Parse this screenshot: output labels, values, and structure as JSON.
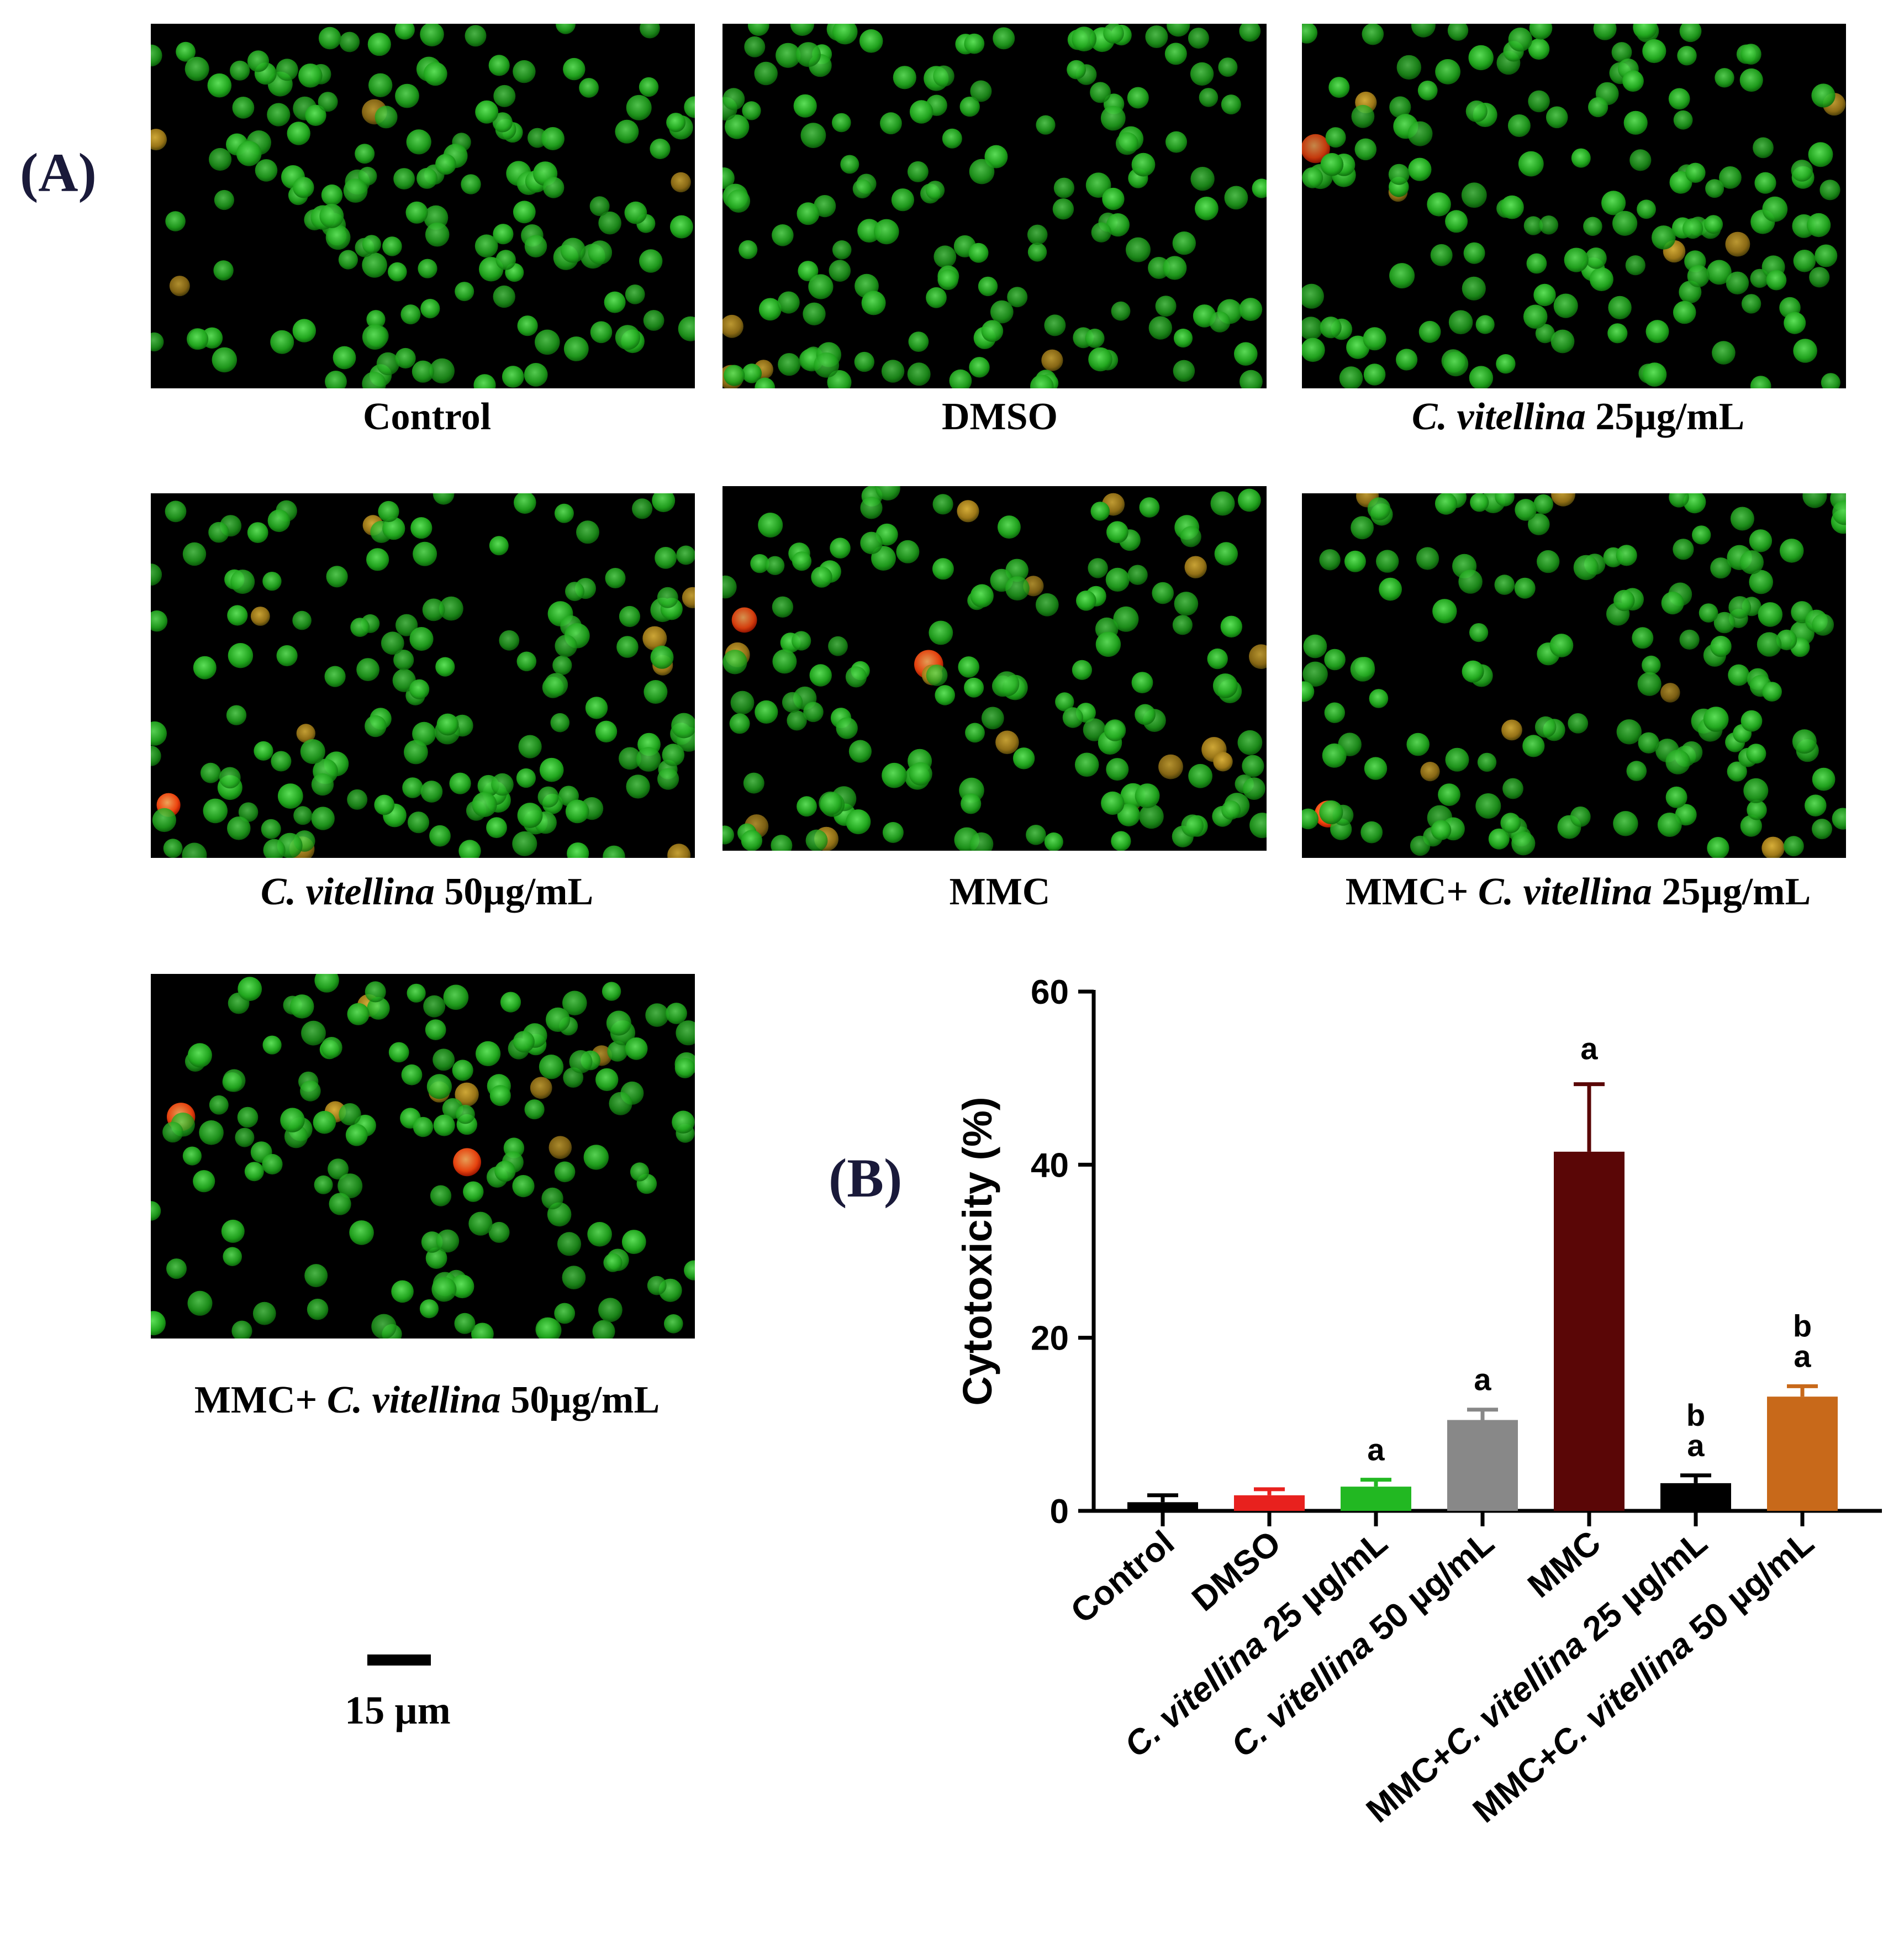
{
  "panel_a_label": "(A)",
  "panel_b_label": "(B)",
  "micrographs": [
    {
      "name": "Control",
      "caption": [
        {
          "t": "Control",
          "i": false
        }
      ],
      "red_cells": 0,
      "orange_cells": 4
    },
    {
      "name": "DMSO",
      "caption": [
        {
          "t": "DMSO",
          "i": false
        }
      ],
      "red_cells": 0,
      "orange_cells": 4
    },
    {
      "name": "C. vitellina 25",
      "caption": [
        {
          "t": "C. vitellina",
          "i": true
        },
        {
          "t": " 25µg/mL",
          "i": false
        }
      ],
      "red_cells": 1,
      "orange_cells": 5
    },
    {
      "name": "C. vitellina 50",
      "caption": [
        {
          "t": "C. vitellina",
          "i": true
        },
        {
          "t": "  50µg/mL",
          "i": false
        }
      ],
      "red_cells": 1,
      "orange_cells": 8
    },
    {
      "name": "MMC",
      "caption": [
        {
          "t": "MMC",
          "i": false
        }
      ],
      "red_cells": 2,
      "orange_cells": 14
    },
    {
      "name": "MMC+C. vitellina 25",
      "caption": [
        {
          "t": "MMC+ ",
          "i": false
        },
        {
          "t": "C. vitellina",
          "i": true
        },
        {
          "t": "  25µg/mL",
          "i": false
        }
      ],
      "red_cells": 1,
      "orange_cells": 6
    },
    {
      "name": "MMC+C. vitellina 50",
      "caption": [
        {
          "t": "MMC+ ",
          "i": false
        },
        {
          "t": "C. vitellina",
          "i": true
        },
        {
          "t": " 50µg/mL",
          "i": false
        }
      ],
      "red_cells": 2,
      "orange_cells": 7
    }
  ],
  "scale_bar_label": "15 µm",
  "chart_data": {
    "type": "bar",
    "ylabel": "Cytotoxicity (%)",
    "xlabel": "",
    "ylim": [
      0,
      60
    ],
    "yticks": [
      0,
      20,
      40,
      60
    ],
    "categories": [
      "Control",
      "DMSO",
      "C. vitellina 25 µg/mL",
      "C. vitellina 50 µg/mL",
      "MMC",
      "MMC+C. vitellina 25 µg/mL",
      "MMC+C. vitellina 50 µg/mL"
    ],
    "values": [
      1.0,
      1.8,
      2.8,
      10.5,
      41.5,
      3.2,
      13.2
    ],
    "errors": [
      0.8,
      0.7,
      0.8,
      1.2,
      7.8,
      0.9,
      1.2
    ],
    "colors": [
      "#000000",
      "#e8211e",
      "#22b822",
      "#888888",
      "#5a0606",
      "#000000",
      "#c8691a"
    ],
    "significance": [
      "",
      "",
      "a",
      "a",
      "a",
      "b a",
      "b a"
    ],
    "grid": false,
    "legend": "none"
  }
}
